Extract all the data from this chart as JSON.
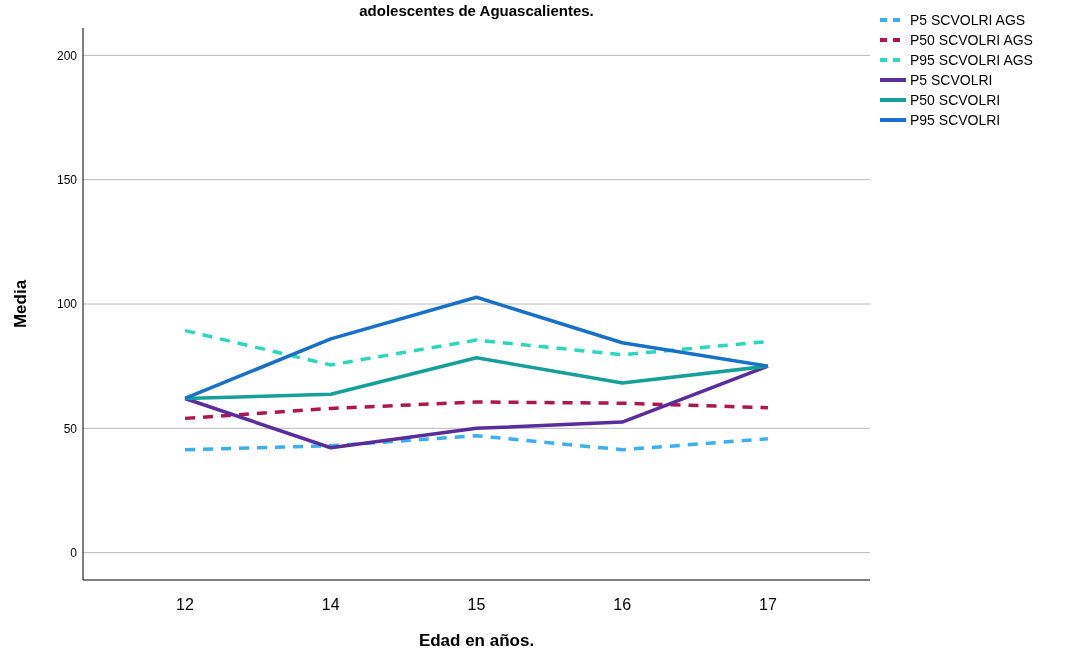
{
  "chart_data": {
    "type": "line",
    "title": "adolescentes de Aguascalientes.",
    "xlabel": "Edad en años.",
    "ylabel": "Media",
    "categories": [
      "12",
      "14",
      "15",
      "16",
      "17"
    ],
    "series": [
      {
        "name": "P5 SCVOLRI AGS",
        "color": "#3ab0f0",
        "line_style": "dashed",
        "values": [
          41.4,
          43,
          47,
          41.4,
          45.8
        ]
      },
      {
        "name": "P50 SCVOLRI AGS",
        "color": "#b0164e",
        "line_style": "dashed",
        "values": [
          54,
          58,
          60.6,
          60.1,
          58.3
        ]
      },
      {
        "name": "P95 SCVOLRI AGS",
        "color": "#2ad8c0",
        "line_style": "dashed",
        "values": [
          89.3,
          75.5,
          85.5,
          79.6,
          84.9
        ]
      },
      {
        "name": "P5 SCVOLRI",
        "color": "#5a2d9c",
        "line_style": "solid",
        "values": [
          62,
          42.2,
          50,
          52.5,
          75
        ]
      },
      {
        "name": "P50 SCVOLRI",
        "color": "#15a09a",
        "line_style": "solid",
        "values": [
          62,
          63.7,
          78.4,
          68.2,
          75
        ]
      },
      {
        "name": "P95 SCVOLRI",
        "color": "#1870c8",
        "line_style": "solid",
        "values": [
          62,
          86,
          102.7,
          84.4,
          75
        ]
      }
    ],
    "ylim": [
      -11,
      211
    ],
    "yticks": [
      0,
      50,
      100,
      150,
      200
    ],
    "grid": "y",
    "legend": "top right",
    "marker": "none"
  }
}
